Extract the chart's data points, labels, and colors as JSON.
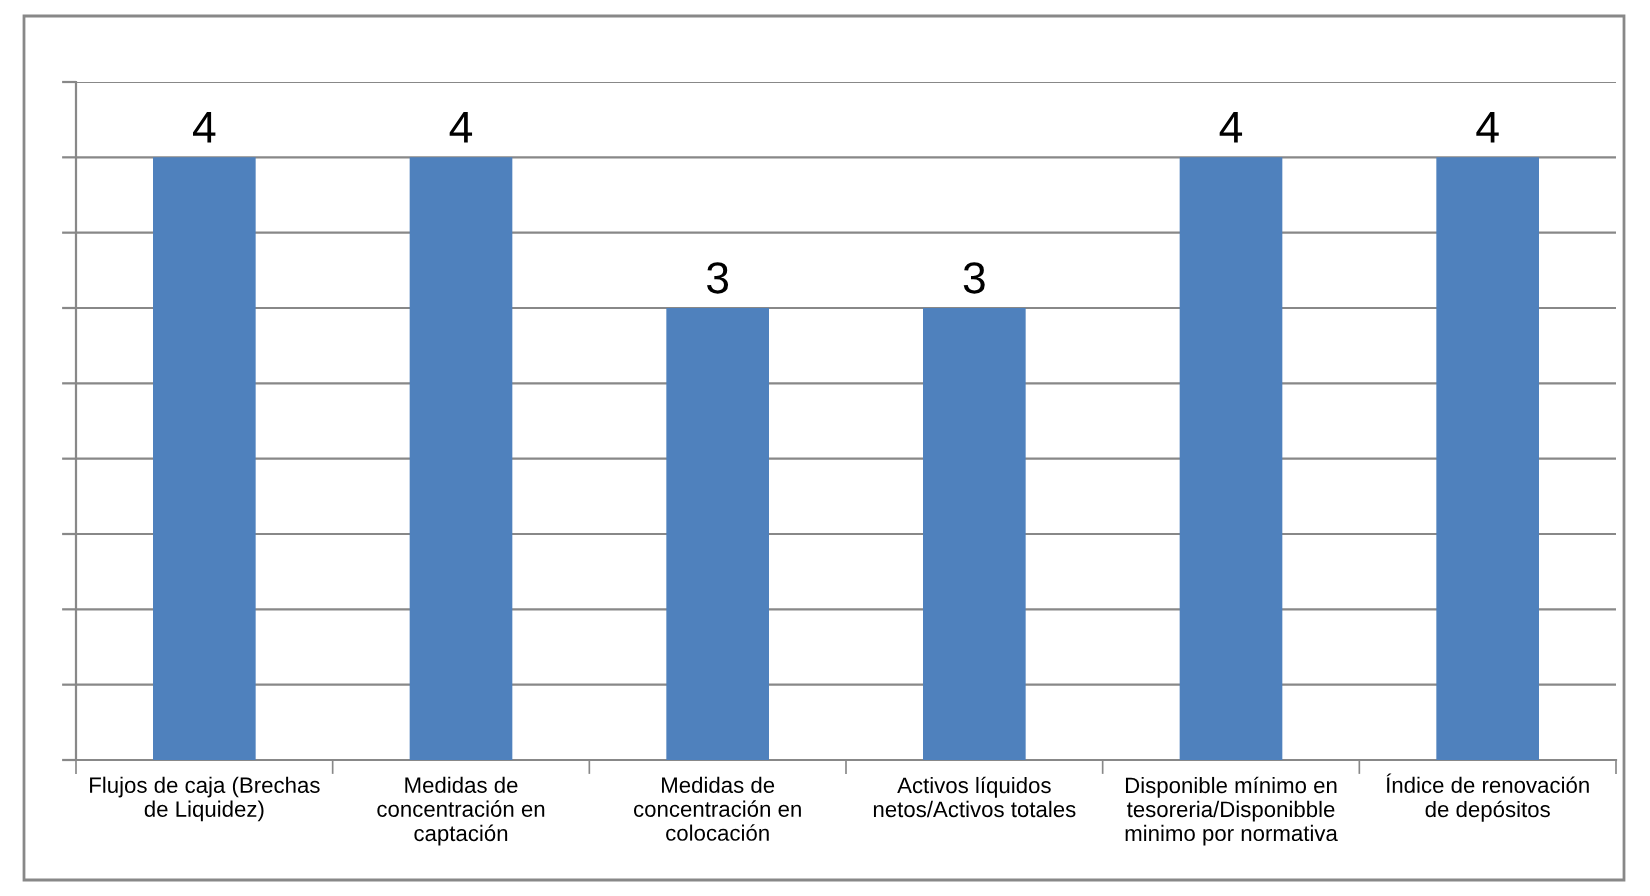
{
  "chart_data": {
    "type": "bar",
    "categories": [
      "Flujos de caja (Brechas\nde Liquidez)",
      "Medidas de\nconcentración en\ncaptación",
      "Medidas de\nconcentración en\ncolocación",
      "Activos líquidos\nnetos/Activos totales",
      "Disponible mínimo en\ntesoreria/Disponibble\nminimo por normativa",
      "Índice de renovación\nde depósitos"
    ],
    "values": [
      4,
      4,
      3,
      3,
      4,
      4
    ],
    "color": "#4f81bd",
    "data_labels": true,
    "ylim": [
      0,
      4.5
    ],
    "yticks": [
      {
        "value": 0,
        "label": null
      },
      {
        "value": 0.5,
        "label": null
      },
      {
        "value": 1,
        "label": null
      },
      {
        "value": 1.5,
        "label": null
      },
      {
        "value": 2,
        "label": null
      },
      {
        "value": 2.5,
        "label": null
      },
      {
        "value": 3,
        "label": null
      },
      {
        "value": 3.5,
        "label": null
      },
      {
        "value": 4,
        "label": null
      },
      {
        "value": 4.5,
        "label": null
      }
    ],
    "tick_labels": "x",
    "grid": "y",
    "legend": false
  }
}
